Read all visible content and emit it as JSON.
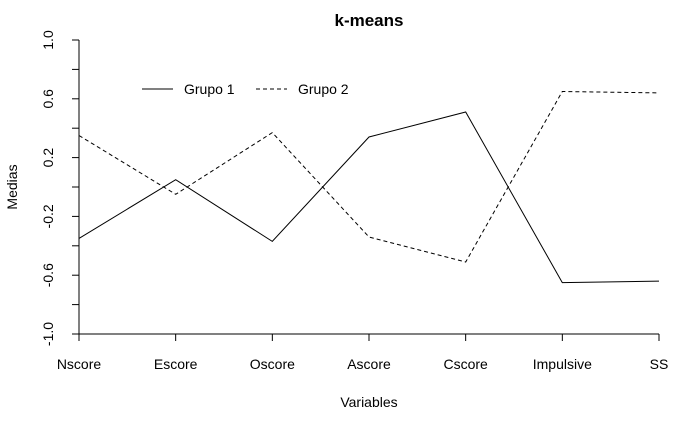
{
  "chart_data": {
    "type": "line",
    "title": "k-means",
    "xlabel": "Variables",
    "ylabel": "Medias",
    "categories": [
      "Nscore",
      "Escore",
      "Oscore",
      "Ascore",
      "Cscore",
      "Impulsive",
      "SS"
    ],
    "ylim": [
      -1.0,
      1.0
    ],
    "yticks": [
      "-1.0",
      "-0.6",
      "-0.2",
      "0.2",
      "0.6",
      "1.0"
    ],
    "yticks_minor": [
      -0.8,
      -0.4,
      0.0,
      0.4,
      0.8
    ],
    "grid": false,
    "legend_position": "top-left",
    "series": [
      {
        "name": "Grupo 1",
        "line_style": "solid",
        "color": "#000000",
        "values": [
          -0.35,
          0.05,
          -0.37,
          0.34,
          0.51,
          -0.65,
          -0.64
        ]
      },
      {
        "name": "Grupo 2",
        "line_style": "dashed",
        "color": "#000000",
        "values": [
          0.35,
          -0.05,
          0.37,
          -0.34,
          -0.51,
          0.65,
          0.64
        ]
      }
    ]
  }
}
